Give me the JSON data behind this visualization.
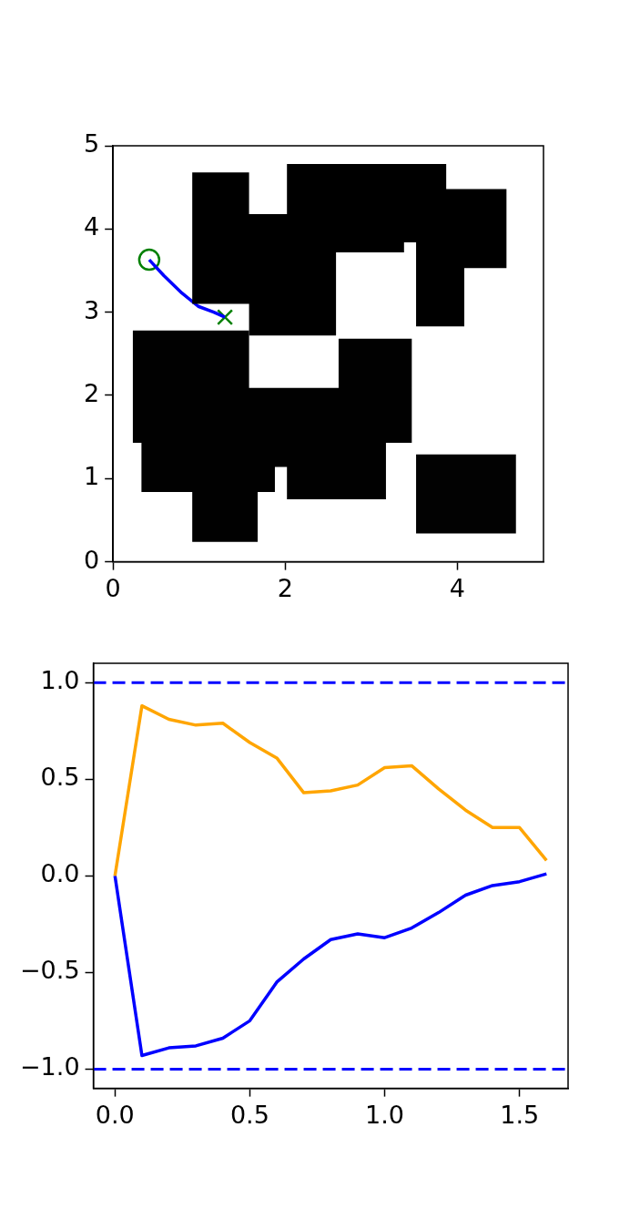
{
  "chart_data": [
    {
      "type": "line",
      "xlim": [
        0,
        5
      ],
      "ylim": [
        0,
        5
      ],
      "xticks": [
        0,
        2,
        4
      ],
      "yticks": [
        0,
        1,
        2,
        3,
        4,
        5
      ],
      "grid": false,
      "series": [
        {
          "type": "area",
          "color": "#000000",
          "x": [
            0.92,
            0.92,
            1.58,
            1.58,
            2.02,
            2.02,
            3.87,
            3.87,
            4.57,
            4.57,
            4.08,
            4.08,
            3.52,
            3.52,
            3.38,
            3.38,
            2.59,
            2.59,
            1.58,
            1.58,
            0.92
          ],
          "values": [
            3.1,
            4.68,
            4.68,
            4.18,
            4.18,
            4.78,
            4.78,
            4.48,
            4.48,
            3.53,
            3.53,
            2.83,
            2.83,
            3.84,
            3.84,
            3.72,
            3.72,
            2.72,
            2.72,
            3.1,
            3.1
          ]
        },
        {
          "type": "area",
          "color": "#010101",
          "x": [
            0.23,
            1.58,
            1.58,
            2.62,
            2.62,
            3.47,
            3.47,
            3.17,
            3.17,
            2.02,
            2.02,
            1.88,
            1.88,
            1.68,
            1.68,
            0.92,
            0.92,
            0.33,
            0.33,
            0.23,
            0.23
          ],
          "values": [
            2.78,
            2.78,
            2.09,
            2.09,
            2.68,
            2.68,
            1.43,
            1.43,
            0.75,
            0.75,
            1.14,
            1.14,
            0.84,
            0.84,
            0.24,
            0.24,
            0.84,
            0.84,
            1.43,
            1.43,
            2.78
          ]
        },
        {
          "type": "area",
          "color": "#020202",
          "x": [
            3.52,
            4.68,
            4.68,
            3.52,
            3.52
          ],
          "values": [
            0.34,
            0.34,
            1.29,
            1.29,
            0.34
          ]
        },
        {
          "type": "line",
          "color": "#0000ff",
          "x": [
            0.42,
            0.59,
            0.8,
            0.99,
            1.17,
            1.3
          ],
          "values": [
            3.63,
            3.44,
            3.23,
            3.07,
            3.0,
            2.94
          ]
        },
        {
          "type": "scatter",
          "color": "#008000",
          "marker": "circle",
          "x": [
            0.42
          ],
          "values": [
            3.63
          ]
        },
        {
          "type": "scatter",
          "color": "#008000",
          "marker": "cross",
          "x": [
            1.3
          ],
          "values": [
            2.94
          ]
        }
      ]
    },
    {
      "type": "line",
      "xlim": [
        -0.08,
        1.68
      ],
      "ylim": [
        -1.1,
        1.1
      ],
      "xticks": [
        {
          "value": 0,
          "label": "0.0"
        },
        0.5,
        {
          "value": 1,
          "label": "1.0"
        },
        1.5
      ],
      "yticks": [
        {
          "value": -1,
          "label": "−1.0"
        },
        {
          "value": -0.5,
          "label": "−0.5"
        },
        {
          "value": 0,
          "label": "0.0"
        },
        0.5,
        {
          "value": 1,
          "label": "1.0"
        }
      ],
      "grid": false,
      "x": [
        0,
        0.1,
        0.2,
        0.3,
        0.4,
        0.5,
        0.6,
        0.7,
        0.8,
        0.9,
        1.0,
        1.1,
        1.2,
        1.3,
        1.4,
        1.5,
        1.6
      ],
      "series": [
        {
          "color": "#ffa500",
          "values": [
            0,
            0.88,
            0.81,
            0.78,
            0.79,
            0.69,
            0.61,
            0.43,
            0.44,
            0.47,
            0.56,
            0.57,
            0.45,
            0.34,
            0.25,
            0.25,
            0.08
          ]
        },
        {
          "color": "#0000ff",
          "values": [
            0,
            -0.93,
            -0.89,
            -0.88,
            -0.84,
            -0.75,
            -0.55,
            -0.43,
            -0.33,
            -0.3,
            -0.32,
            -0.27,
            -0.19,
            -0.1,
            -0.05,
            -0.03,
            0.01
          ]
        }
      ],
      "ref_lines": [
        {
          "axis": "y",
          "value": 1,
          "color": "#0000ff",
          "line_style": "dashed"
        },
        {
          "axis": "y",
          "value": -1,
          "color": "#0000ff",
          "line_style": "dashed"
        }
      ]
    }
  ]
}
